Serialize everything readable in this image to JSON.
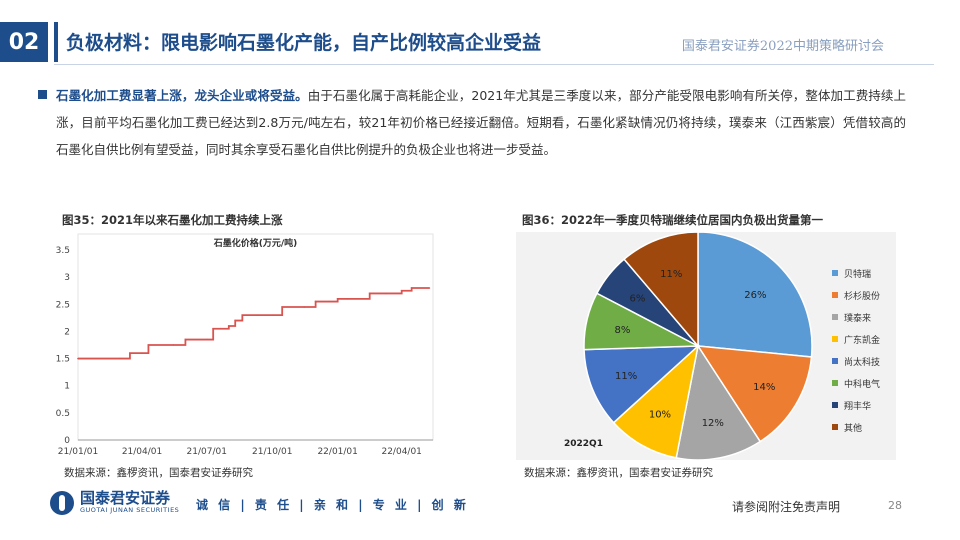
{
  "header": {
    "slide_number": "02",
    "title": "负极材料：限电影响石墨化产能，自产比例较高企业受益",
    "conference": "国泰君安证券2022中期策略研讨会"
  },
  "body": {
    "highlight": "石墨化加工费显著上涨，龙头企业或将受益。",
    "text": "由于石墨化属于高耗能企业，2021年尤其是三季度以来，部分产能受限电影响有所关停，整体加工费持续上涨，目前平均石墨化加工费已经达到2.8万元/吨左右，较21年初价格已经接近翻倍。短期看，石墨化紧缺情况仍将持续，璞泰来（江西紫宸）凭借较高的石墨化自供比例有望受益，同时其余享受石墨化自供比例提升的负极企业也将进一步受益。"
  },
  "figure35": {
    "title": "图35：2021年以来石墨化加工费持续上涨",
    "source": "数据来源：鑫椤资讯，国泰君安证券研究"
  },
  "figure36": {
    "title": "图36：2022年一季度贝特瑞继续位居国内负极出货量第一",
    "source": "数据来源：鑫椤资讯，国泰君安证券研究"
  },
  "footer": {
    "logo_cn": "国泰君安证券",
    "logo_en": "GUOTAI JUNAN SECURITIES",
    "motto": "诚 信 | 责 任 | 亲 和 | 专 业 | 创 新",
    "disclaimer": "请参阅附注免责声明",
    "page": "28"
  },
  "colors": {
    "brand": "#1e4d8c",
    "line": "#d9534f"
  },
  "chart_data": [
    {
      "type": "line",
      "title": "石墨化价格(万元/吨)",
      "x_ticks": [
        "21/01/01",
        "21/04/01",
        "21/07/01",
        "21/10/01",
        "22/01/01",
        "22/04/01"
      ],
      "ylim": [
        0,
        3.5
      ],
      "y_ticks": [
        0,
        0.5,
        1,
        1.5,
        2,
        2.5,
        3,
        3.5
      ],
      "grid": false,
      "series": [
        {
          "name": "",
          "color": "#d9534f",
          "x": [
            "2021-01-01",
            "2021-03-01",
            "2021-03-15",
            "2021-04-01",
            "2021-04-10",
            "2021-05-15",
            "2021-06-01",
            "2021-07-01",
            "2021-07-10",
            "2021-07-20",
            "2021-08-01",
            "2021-08-10",
            "2021-08-20",
            "2021-09-10",
            "2021-10-01",
            "2021-10-15",
            "2021-11-15",
            "2021-12-01",
            "2021-12-20",
            "2022-01-01",
            "2022-01-15",
            "2022-02-15",
            "2022-03-10",
            "2022-04-01",
            "2022-04-15",
            "2022-05-10"
          ],
          "y": [
            1.5,
            1.5,
            1.6,
            1.6,
            1.75,
            1.75,
            1.85,
            1.85,
            2.05,
            2.05,
            2.1,
            2.2,
            2.3,
            2.3,
            2.3,
            2.45,
            2.45,
            2.55,
            2.55,
            2.6,
            2.6,
            2.7,
            2.7,
            2.75,
            2.8,
            2.8
          ]
        }
      ]
    },
    {
      "type": "pie",
      "period_label": "2022Q1",
      "slices": [
        {
          "label": "贝特瑞",
          "value": 26,
          "color": "#5b9bd5"
        },
        {
          "label": "杉杉股份",
          "value": 14,
          "color": "#ed7d31"
        },
        {
          "label": "璞泰来",
          "value": 12,
          "color": "#a5a5a5"
        },
        {
          "label": "广东凯金",
          "value": 10,
          "color": "#ffc000"
        },
        {
          "label": "尚太科技",
          "value": 11,
          "color": "#4472c4"
        },
        {
          "label": "中科电气",
          "value": 8,
          "color": "#70ad47"
        },
        {
          "label": "翔丰华",
          "value": 6,
          "color": "#264478"
        },
        {
          "label": "其他",
          "value": 11,
          "color": "#9e480e"
        }
      ],
      "percent_labels": [
        "26%",
        "14%",
        "12%",
        "10%",
        "11%",
        "8%",
        "6%",
        "11%"
      ]
    }
  ]
}
